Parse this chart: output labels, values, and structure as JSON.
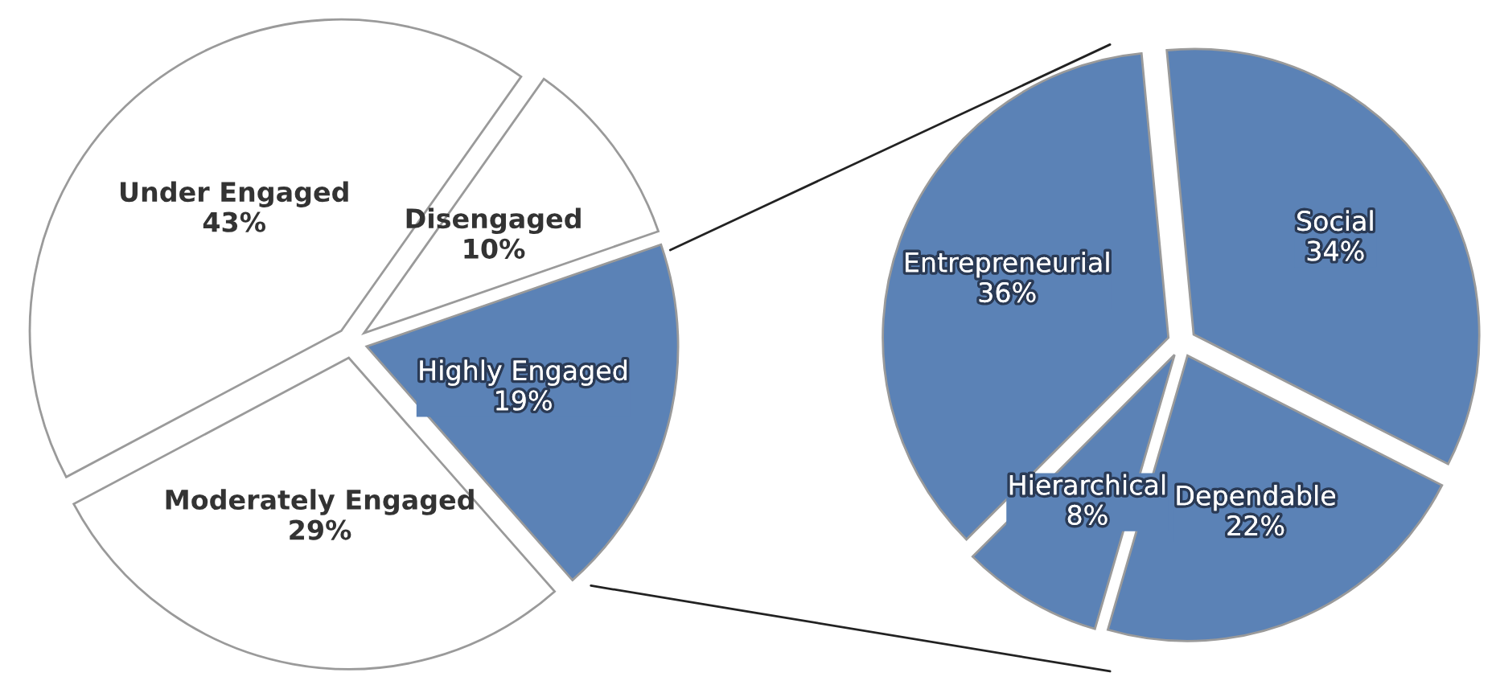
{
  "chart_data": [
    {
      "type": "pie",
      "categories": [
        "Under Engaged",
        "Disengaged",
        "Highly Engaged",
        "Moderately Engaged"
      ],
      "values": [
        43,
        10,
        19,
        29
      ],
      "value_labels": [
        "43%",
        "10%",
        "19%",
        "29%"
      ],
      "colors": [
        "#ffffff",
        "#ffffff",
        "#5b82b6",
        "#ffffff"
      ]
    },
    {
      "type": "pie",
      "categories": [
        "Entrepreneurial",
        "Social",
        "Dependable",
        "Hierarchical"
      ],
      "values": [
        36,
        34,
        22,
        8
      ],
      "value_labels": [
        "36%",
        "34%",
        "22%",
        "8%"
      ],
      "colors": [
        "#5b82b6",
        "#5b82b6",
        "#5b82b6",
        "#5b82b6"
      ]
    }
  ]
}
